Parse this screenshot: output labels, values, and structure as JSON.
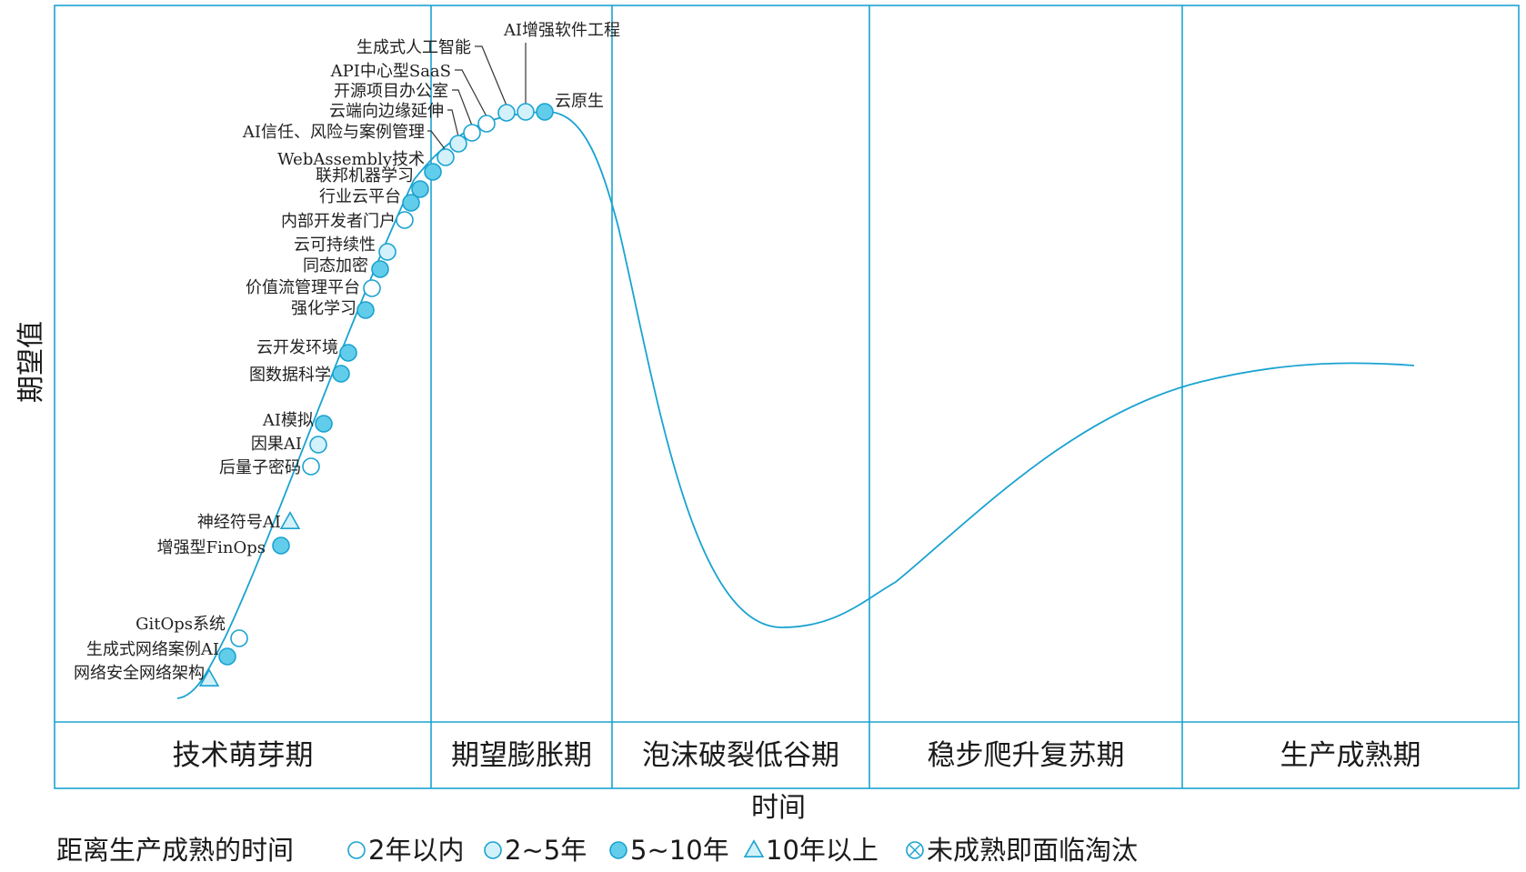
{
  "chart_data": {
    "type": "hype-cycle",
    "ylabel": "期望值",
    "xlabel": "时间",
    "colors": {
      "line": "#1aa3d1",
      "frame": "#1aa3d1",
      "light_fill": "#ffffff",
      "medium_fill": "#d3f1fa",
      "dark_fill": "#62cdea"
    },
    "phases": [
      "技术萌芽期",
      "期望膨胀期",
      "泡沫破裂低谷期",
      "稳步爬升复苏期",
      "生产成熟期"
    ],
    "legend": {
      "title": "距离生产成熟的时间",
      "items": [
        {
          "key": "light",
          "label": "2年以内",
          "marker": "circle-light"
        },
        {
          "key": "medium",
          "label": "2~5年",
          "marker": "circle-medium"
        },
        {
          "key": "dark",
          "label": "5~10年",
          "marker": "circle-dark"
        },
        {
          "key": "triangle",
          "label": "10年以上",
          "marker": "triangle"
        },
        {
          "key": "obsolete",
          "label": "未成熟即面临淘汰",
          "marker": "circle-cross"
        }
      ]
    },
    "technologies": [
      {
        "name": "网络安全网络架构",
        "category": "triangle"
      },
      {
        "name": "生成式网络案例AI",
        "category": "dark"
      },
      {
        "name": "GitOps系统",
        "category": "light"
      },
      {
        "name": "增强型FinOps",
        "category": "dark"
      },
      {
        "name": "神经符号AI",
        "category": "triangle"
      },
      {
        "name": "后量子密码",
        "category": "light"
      },
      {
        "name": "因果AI",
        "category": "medium"
      },
      {
        "name": "AI模拟",
        "category": "dark"
      },
      {
        "name": "图数据科学",
        "category": "dark"
      },
      {
        "name": "云开发环境",
        "category": "dark"
      },
      {
        "name": "强化学习",
        "category": "dark"
      },
      {
        "name": "价值流管理平台",
        "category": "light"
      },
      {
        "name": "同态加密",
        "category": "dark"
      },
      {
        "name": "云可持续性",
        "category": "medium"
      },
      {
        "name": "内部开发者门户",
        "category": "light"
      },
      {
        "name": "行业云平台",
        "category": "dark"
      },
      {
        "name": "联邦机器学习",
        "category": "dark"
      },
      {
        "name": "WebAssembly技术",
        "category": "dark"
      },
      {
        "name": "AI信任、风险与案例管理",
        "category": "medium"
      },
      {
        "name": "云端向边缘延伸",
        "category": "medium"
      },
      {
        "name": "开源项目办公室",
        "category": "light"
      },
      {
        "name": "API中心型SaaS",
        "category": "light"
      },
      {
        "name": "生成式人工智能",
        "category": "medium"
      },
      {
        "name": "AI增强软件工程",
        "category": "medium"
      },
      {
        "name": "云原生",
        "category": "dark"
      }
    ]
  }
}
